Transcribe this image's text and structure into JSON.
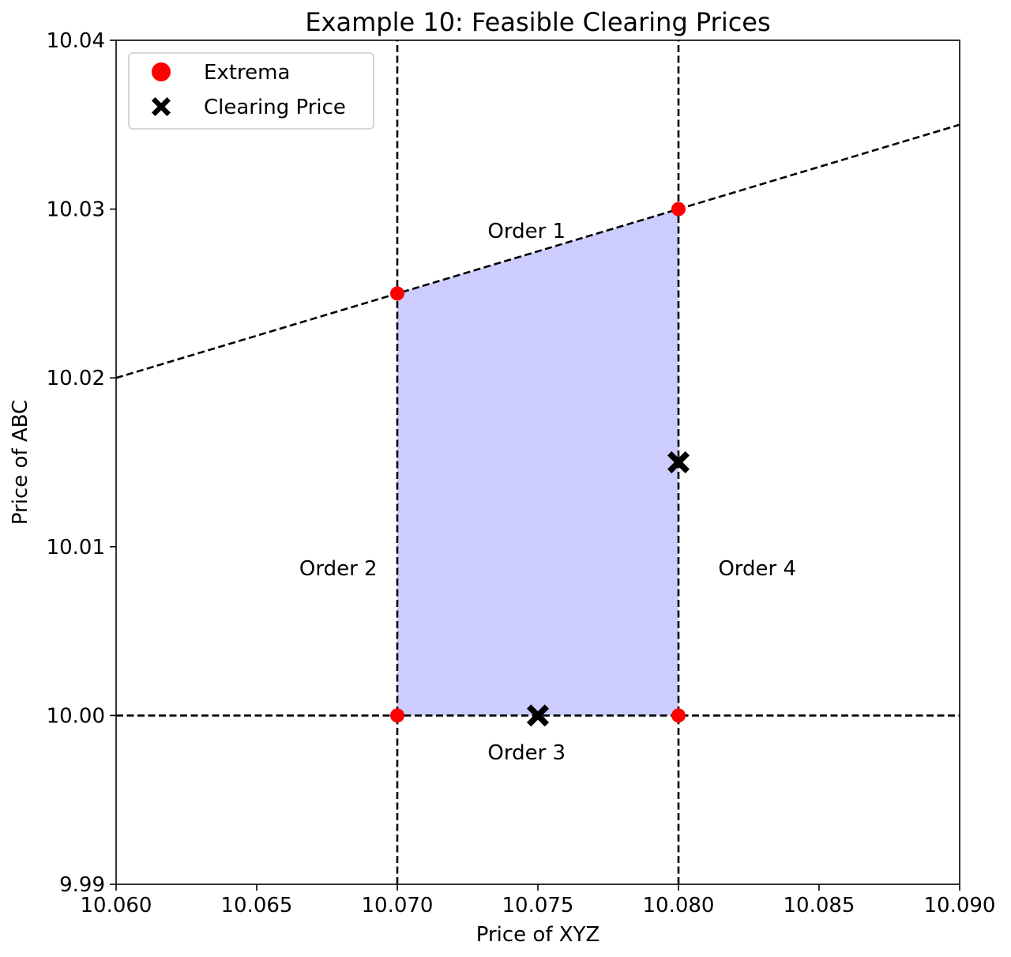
{
  "chart_data": {
    "type": "scatter",
    "title": "Example 10: Feasible Clearing Prices",
    "xlabel": "Price of XYZ",
    "ylabel": "Price of ABC",
    "xlim": [
      10.06,
      10.09
    ],
    "ylim": [
      9.99,
      10.04
    ],
    "x_ticks": [
      10.06,
      10.065,
      10.07,
      10.075,
      10.08,
      10.085,
      10.09
    ],
    "x_tick_labels": [
      "10.060",
      "10.065",
      "10.070",
      "10.075",
      "10.080",
      "10.085",
      "10.090"
    ],
    "y_ticks": [
      9.99,
      10.0,
      10.01,
      10.02,
      10.03,
      10.04
    ],
    "y_tick_labels": [
      "9.99",
      "10.00",
      "10.01",
      "10.02",
      "10.03",
      "10.04"
    ],
    "grid": false,
    "legend_position": "top-left",
    "feasible_region": {
      "polygon": [
        [
          10.07,
          10.0
        ],
        [
          10.08,
          10.0
        ],
        [
          10.08,
          10.03
        ],
        [
          10.07,
          10.025
        ]
      ],
      "color": "#ccccff"
    },
    "constraint_lines": [
      {
        "label": "Order 1",
        "points": [
          [
            10.06,
            10.02
          ],
          [
            10.09,
            10.035
          ]
        ],
        "label_at": [
          10.0746,
          10.0283
        ]
      },
      {
        "label": "Order 2",
        "points": [
          [
            10.07,
            9.99
          ],
          [
            10.07,
            10.04
          ]
        ],
        "label_at": [
          10.0679,
          10.0083
        ]
      },
      {
        "label": "Order 3",
        "points": [
          [
            10.06,
            10.0
          ],
          [
            10.09,
            10.0
          ]
        ],
        "label_at": [
          10.0746,
          9.9974
        ]
      },
      {
        "label": "Order 4",
        "points": [
          [
            10.08,
            9.99
          ],
          [
            10.08,
            10.04
          ]
        ],
        "label_at": [
          10.0828,
          10.0083
        ]
      }
    ],
    "series": [
      {
        "name": "Extrema",
        "marker": "circle",
        "color": "#ff0000",
        "points": [
          [
            10.07,
            10.025
          ],
          [
            10.08,
            10.03
          ],
          [
            10.07,
            10.0
          ],
          [
            10.08,
            10.0
          ]
        ]
      },
      {
        "name": "Clearing Price",
        "marker": "x",
        "color": "#000000",
        "points": [
          [
            10.075,
            10.0
          ],
          [
            10.08,
            10.015
          ]
        ]
      }
    ]
  }
}
